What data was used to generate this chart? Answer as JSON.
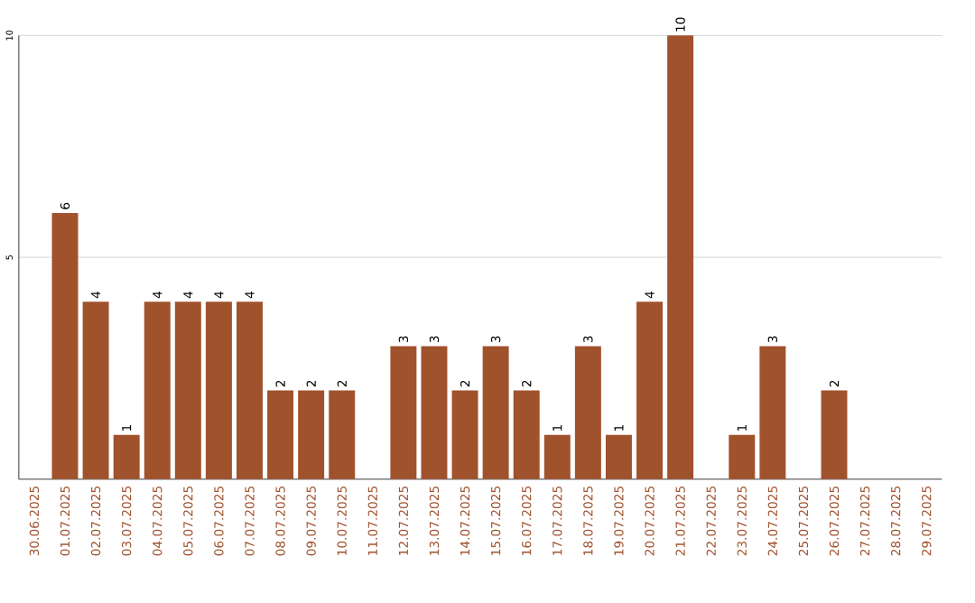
{
  "chart_data": {
    "type": "bar",
    "categories": [
      "30.06.2025",
      "01.07.2025",
      "02.07.2025",
      "03.07.2025",
      "04.07.2025",
      "05.07.2025",
      "06.07.2025",
      "07.07.2025",
      "08.07.2025",
      "09.07.2025",
      "10.07.2025",
      "11.07.2025",
      "12.07.2025",
      "13.07.2025",
      "14.07.2025",
      "15.07.2025",
      "16.07.2025",
      "17.07.2025",
      "18.07.2025",
      "19.07.2025",
      "20.07.2025",
      "21.07.2025",
      "22.07.2025",
      "23.07.2025",
      "24.07.2025",
      "25.07.2025",
      "26.07.2025",
      "27.07.2025",
      "28.07.2025",
      "29.07.2025"
    ],
    "values": [
      0,
      6,
      4,
      1,
      4,
      4,
      4,
      4,
      2,
      2,
      2,
      0,
      3,
      3,
      2,
      3,
      2,
      1,
      3,
      1,
      4,
      10,
      0,
      1,
      3,
      0,
      2,
      0,
      0,
      0
    ],
    "value_labels": [
      null,
      "6",
      "4",
      "1",
      "4",
      "4",
      "4",
      "4",
      "2",
      "2",
      "2",
      null,
      "3",
      "3",
      "2",
      "3",
      "2",
      "1",
      "3",
      "1",
      "4",
      "10",
      null,
      "1",
      "3",
      null,
      "2",
      null,
      null,
      null
    ],
    "color": "#a0522d",
    "ylim": [
      0,
      10
    ],
    "yticks": [
      5,
      10
    ],
    "grid": "y"
  }
}
